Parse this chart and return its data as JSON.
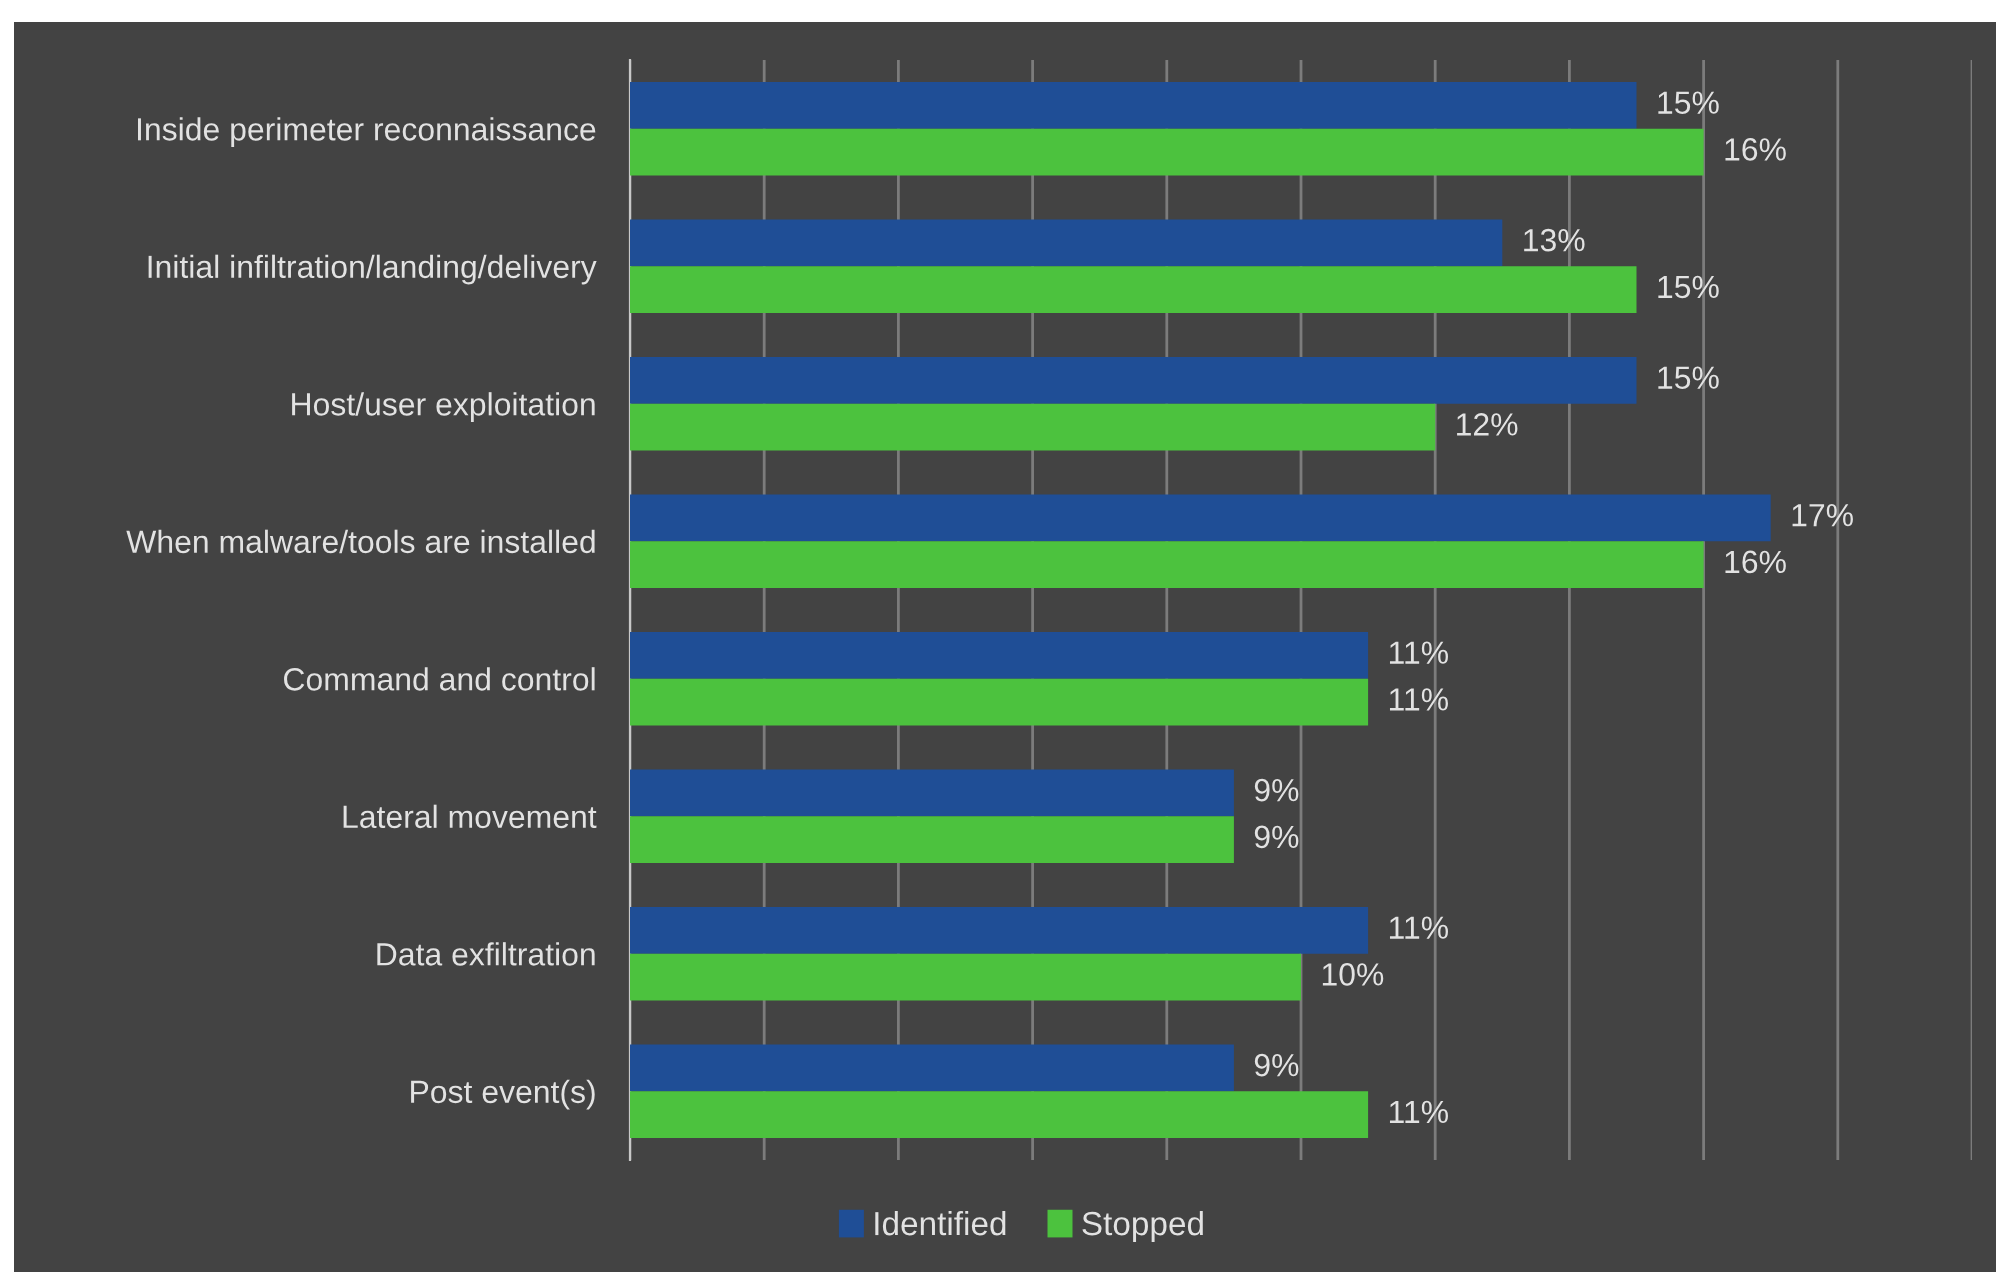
{
  "chart_data": {
    "type": "bar",
    "orientation": "horizontal",
    "categories": [
      "Inside perimeter reconnaissance",
      "Initial infiltration/landing/delivery",
      "Host/user exploitation",
      "When malware/tools are installed",
      "Command and control",
      "Lateral movement",
      "Data exfiltration",
      "Post event(s)"
    ],
    "series": [
      {
        "name": "Identified",
        "color": "#1f4e96",
        "values": [
          15,
          13,
          15,
          17,
          11,
          9,
          11,
          9
        ],
        "value_labels": [
          "15%",
          "13%",
          "15%",
          "17%",
          "11%",
          "9%",
          "11%",
          "9%"
        ]
      },
      {
        "name": "Stopped",
        "color": "#4cc23e",
        "values": [
          16,
          15,
          12,
          16,
          11,
          9,
          10,
          11
        ],
        "value_labels": [
          "16%",
          "15%",
          "12%",
          "16%",
          "11%",
          "9%",
          "10%",
          "11%"
        ]
      }
    ],
    "xlim": [
      0,
      20
    ],
    "xticks": [
      {
        "value": 0,
        "label": null
      },
      {
        "value": 2,
        "label": null
      },
      {
        "value": 4,
        "label": null
      },
      {
        "value": 6,
        "label": null
      },
      {
        "value": 8,
        "label": null
      },
      {
        "value": 10,
        "label": null
      },
      {
        "value": 12,
        "label": null
      },
      {
        "value": 14,
        "label": null
      },
      {
        "value": 16,
        "label": null
      },
      {
        "value": 18,
        "label": null
      },
      {
        "value": 20,
        "label": null
      }
    ],
    "grid": "x",
    "legend": "bottom",
    "tick_labels": "y"
  }
}
